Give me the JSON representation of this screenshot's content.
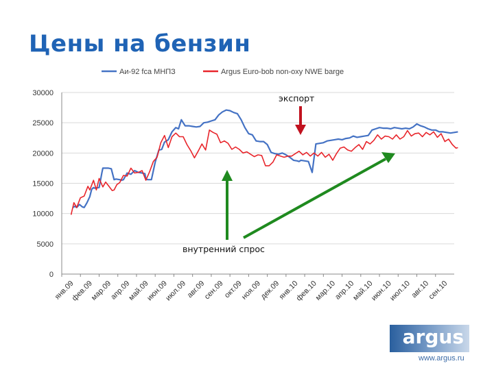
{
  "slide": {
    "title": "Цены на бензин"
  },
  "logo": {
    "word": "argus",
    "url": "www.argus.ru"
  },
  "chart_data": {
    "type": "line",
    "title": "",
    "xlabel": "",
    "ylabel": "",
    "ylim": [
      0,
      30000
    ],
    "y_ticks": [
      0,
      5000,
      10000,
      15000,
      20000,
      25000,
      30000
    ],
    "grid": true,
    "legend_position": "top",
    "categories": [
      "янв.09",
      "фев.09",
      "мар.09",
      "апр.09",
      "май.09",
      "июн.09",
      "июл.09",
      "авг.09",
      "сен.09",
      "окт.09",
      "ноя.09",
      "дек.09",
      "янв.10",
      "фев.10",
      "мар.10",
      "апр.10",
      "май.10",
      "июн.10",
      "июл.10",
      "авг.10",
      "сен.10"
    ],
    "series": [
      {
        "name": "Аи-92 fca МНПЗ",
        "color": "#4472c4",
        "x": [
          0.1,
          0.2,
          0.3,
          0.45,
          0.6,
          0.7,
          0.85,
          1.0,
          1.1,
          1.2,
          1.25,
          1.5,
          1.65,
          1.7,
          1.9,
          2.0,
          2.15,
          2.3,
          2.4,
          2.6,
          2.7,
          2.8,
          3.0,
          3.1,
          3.2,
          3.4,
          3.6,
          3.8,
          3.95,
          4.0,
          4.1,
          4.3,
          4.5,
          4.7,
          4.85,
          5.0,
          5.2,
          5.4,
          5.6,
          5.75,
          5.9,
          6.1,
          6.3,
          6.5,
          6.7,
          6.9,
          7.1,
          7.3,
          7.5,
          7.7,
          7.9,
          8.1,
          8.3,
          8.5,
          8.7,
          8.9,
          9.1,
          9.3,
          9.5,
          9.7,
          9.9,
          10.1,
          10.3,
          10.5,
          10.7,
          10.9,
          11.1,
          11.3,
          11.5,
          11.7,
          11.9,
          12.1,
          12.2,
          12.3,
          12.5,
          12.7,
          12.9,
          13.1,
          13.3,
          13.5,
          13.7,
          13.9,
          14.1,
          14.3,
          14.5,
          14.7,
          14.9,
          15.1,
          15.3,
          15.5,
          15.7,
          15.9,
          16.1,
          16.3,
          16.5,
          16.7,
          16.9,
          17.1,
          17.3,
          17.5,
          17.7,
          17.9,
          18.1,
          18.3,
          18.5,
          18.7,
          18.9,
          19.1,
          19.3,
          19.5,
          19.7,
          19.9,
          20.1,
          20.3,
          20.5,
          20.7
        ],
        "values": [
          11000,
          11200,
          11000,
          11500,
          11100,
          11000,
          11800,
          12800,
          14000,
          14300,
          14200,
          14300,
          16800,
          17500,
          17500,
          17500,
          17400,
          15600,
          15700,
          15600,
          15500,
          15600,
          16700,
          16600,
          16500,
          17100,
          16800,
          16700,
          16600,
          15700,
          15600,
          15600,
          18500,
          20500,
          20600,
          21800,
          22200,
          23500,
          24200,
          24000,
          25500,
          24500,
          24500,
          24400,
          24300,
          24400,
          25000,
          25100,
          25300,
          25500,
          26300,
          26800,
          27100,
          27000,
          26700,
          26500,
          25500,
          24200,
          23200,
          23000,
          22000,
          21900,
          21900,
          21400,
          20100,
          19900,
          19800,
          20000,
          19700,
          19300,
          18800,
          18700,
          18600,
          18800,
          18700,
          18600,
          16800,
          21500,
          21600,
          21700,
          22000,
          22100,
          22200,
          22300,
          22200,
          22400,
          22500,
          22800,
          22600,
          22700,
          22800,
          22900,
          23800,
          24000,
          24200,
          24100,
          24100,
          24000,
          24200,
          24100,
          24000,
          24100,
          24000,
          24300,
          24800,
          24500,
          24300,
          24000,
          23800,
          23800,
          23500,
          23500,
          23400,
          23300,
          23400,
          23500
        ],
        "x_note": "category index"
      },
      {
        "name": "Argus Euro-bob non-oxy NWE barge",
        "color": "#e8252b",
        "x": [
          0.0,
          0.15,
          0.3,
          0.5,
          0.7,
          0.9,
          1.0,
          1.2,
          1.35,
          1.5,
          1.7,
          1.85,
          2.0,
          2.2,
          2.3,
          2.45,
          2.6,
          2.8,
          3.0,
          3.2,
          3.4,
          3.6,
          3.8,
          4.0,
          4.2,
          4.4,
          4.6,
          4.8,
          5.0,
          5.2,
          5.4,
          5.6,
          5.8,
          6.0,
          6.2,
          6.4,
          6.6,
          6.8,
          7.0,
          7.2,
          7.4,
          7.6,
          7.8,
          8.0,
          8.2,
          8.4,
          8.6,
          8.8,
          9.0,
          9.2,
          9.4,
          9.6,
          9.8,
          10.0,
          10.2,
          10.4,
          10.6,
          10.8,
          11.0,
          11.2,
          11.4,
          11.6,
          11.8,
          12.0,
          12.2,
          12.4,
          12.6,
          12.8,
          13.0,
          13.2,
          13.4,
          13.6,
          13.8,
          14.0,
          14.2,
          14.4,
          14.6,
          14.8,
          15.0,
          15.2,
          15.4,
          15.6,
          15.8,
          16.0,
          16.2,
          16.4,
          16.6,
          16.8,
          17.0,
          17.2,
          17.4,
          17.6,
          17.8,
          18.0,
          18.2,
          18.4,
          18.6,
          18.8,
          19.0,
          19.2,
          19.4,
          19.6,
          19.8,
          20.0,
          20.2,
          20.4,
          20.6,
          20.7
        ],
        "values": [
          9800,
          11800,
          11000,
          12600,
          12900,
          14500,
          13900,
          15500,
          13900,
          15800,
          14400,
          15200,
          14600,
          13800,
          13900,
          14800,
          15100,
          16300,
          16200,
          17500,
          16700,
          16800,
          17100,
          15500,
          16900,
          18600,
          19300,
          21700,
          22900,
          20900,
          22700,
          23300,
          22700,
          22700,
          21400,
          20400,
          19200,
          20300,
          21500,
          20500,
          23800,
          23400,
          23100,
          21700,
          22000,
          21600,
          20600,
          21000,
          20600,
          20000,
          20200,
          19800,
          19400,
          19700,
          19600,
          17900,
          17900,
          18500,
          19700,
          19500,
          19300,
          19500,
          19500,
          19900,
          20300,
          19700,
          20100,
          19500,
          20000,
          19500,
          20100,
          19300,
          19800,
          18800,
          19900,
          20800,
          21000,
          20500,
          20300,
          20900,
          21400,
          20600,
          21900,
          21500,
          22100,
          23000,
          22300,
          22800,
          22700,
          22300,
          23000,
          22300,
          22700,
          23700,
          22800,
          23200,
          23300,
          22700,
          23400,
          23000,
          23500,
          22600,
          23200,
          21900,
          22300,
          21400,
          20800,
          20900
        ],
        "x_note": "category index"
      }
    ],
    "annotations": [
      {
        "text": "экспорт"
      },
      {
        "text": "внутренний спрос"
      }
    ]
  }
}
